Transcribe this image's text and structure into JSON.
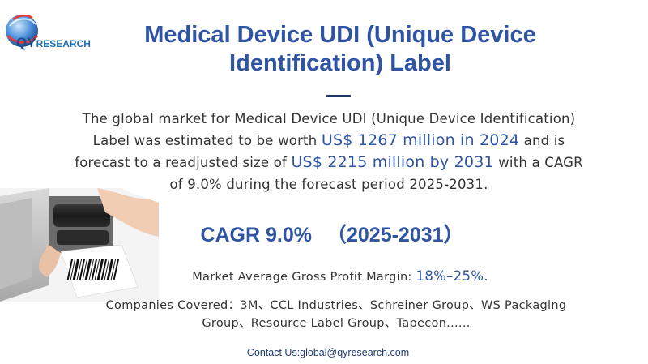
{
  "logo": {
    "brand_highlight": "QY",
    "brand_rest": "RESEARCH",
    "icon": "globe-icon",
    "colors": {
      "primary": "#1f4e8c",
      "accent": "#e23b3b"
    }
  },
  "header": {
    "title": "Medical Device UDI (Unique Device Identification) Label"
  },
  "summary": {
    "part1": "The global market for Medical Device UDI (Unique Device Identification) Label was estimated to be worth",
    "value_2024": "US$ 1267 million in 2024",
    "part2": "and is forecast to a readjusted size of",
    "value_2031": "US$ 2215 million by 2031",
    "part3": "with a CAGR of 9.0% during the forecast period 2025-2031."
  },
  "image": {
    "subject": "barcode-label-printer"
  },
  "cagr": {
    "label": "CAGR 9.0%",
    "period": "（2025-2031）"
  },
  "margin": {
    "label": "Market Average Gross Profit Margin:",
    "value": "18%–25%."
  },
  "companies": {
    "text": "Companies Covered：3M、CCL Industries、Schreiner Group、WS Packaging Group、Resource Label Group、Tapecon......"
  },
  "contact": {
    "text": "Contact Us:global@qyresearch.com"
  },
  "colors": {
    "title": "#2e54a3",
    "body_text": "#333333",
    "highlight": "#2e54a3",
    "contact": "#1f3a6e"
  }
}
